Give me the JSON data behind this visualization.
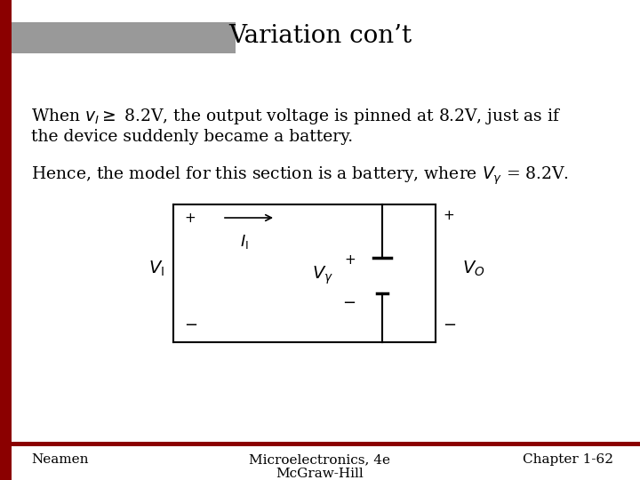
{
  "title": "Variation con’t",
  "title_fontsize": 20,
  "title_font": "serif",
  "footer_left": "Neamen",
  "footer_center": "Microelectronics, 4e\nMcGraw-Hill",
  "footer_right": "Chapter 1-62",
  "body_fontsize": 13.5,
  "footer_fontsize": 11,
  "bg_color": "#ffffff",
  "left_bar_color": "#8B0000",
  "top_bar_color": "#999999",
  "footer_line_color": "#8B0000"
}
